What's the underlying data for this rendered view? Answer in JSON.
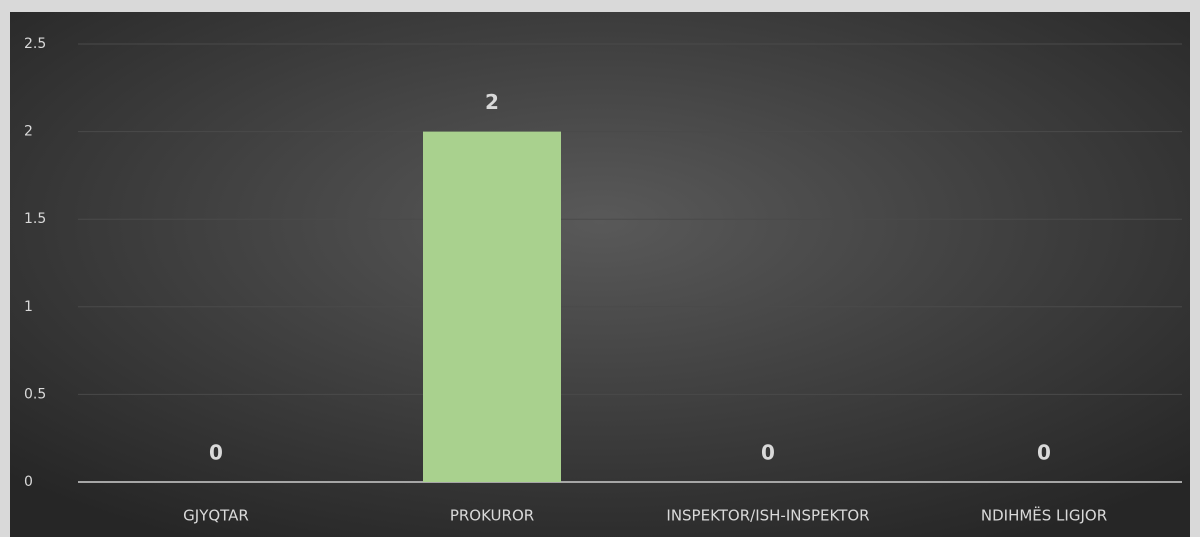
{
  "chart_data": {
    "type": "bar",
    "categories": [
      "GJYQTAR",
      "PROKUROR",
      "INSPEKTOR/ISH-INSPEKTOR",
      "NDIHMËS LIGJOR"
    ],
    "values": [
      0,
      2,
      0,
      0
    ],
    "color": "#a9d18e",
    "ylim": [
      0,
      2.5
    ],
    "yticks": [
      0,
      0.5,
      1,
      1.5,
      2,
      2.5
    ],
    "grid": true
  }
}
